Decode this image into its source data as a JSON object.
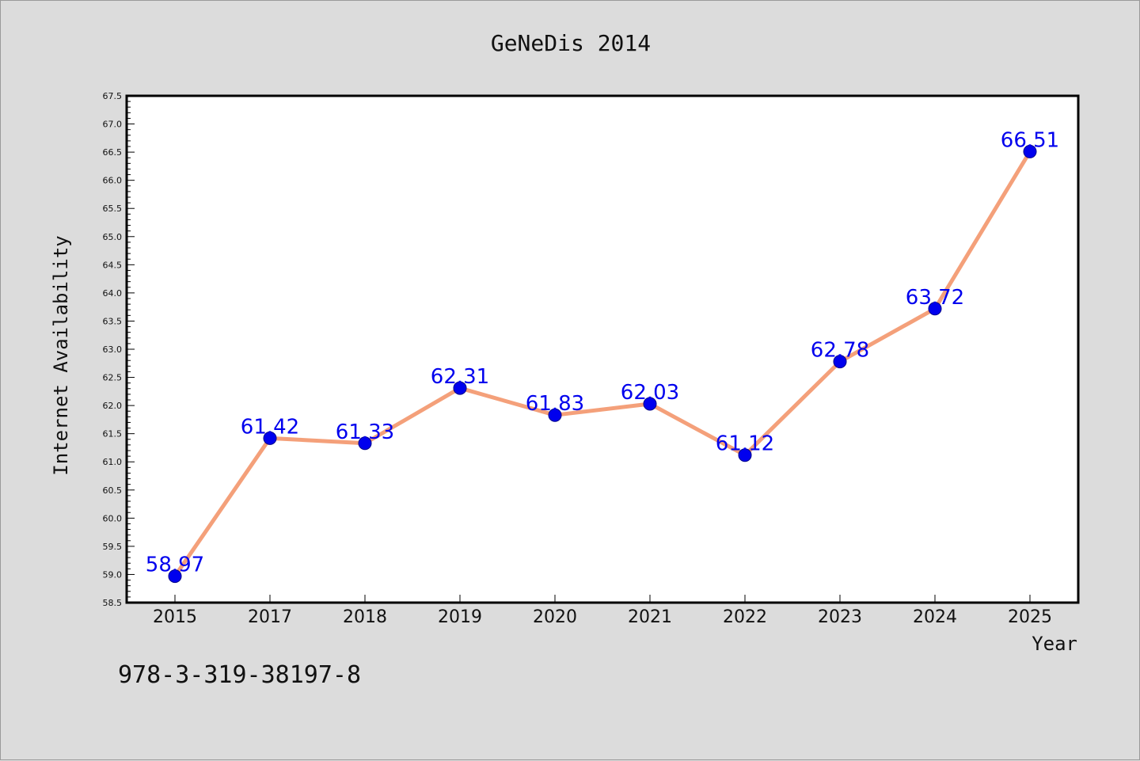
{
  "title": "GeNeDis 2014",
  "footnote": "978-3-319-38197-8",
  "colors": {
    "background": "#dcdcdc",
    "plot_background": "#ffffff",
    "line": "#f4a07a",
    "marker": "#0000ee",
    "label": "#0000ee"
  },
  "chart_data": {
    "type": "line",
    "title": "GeNeDis 2014",
    "xlabel": "Year",
    "ylabel": "Internet Availability",
    "categories": [
      "2015",
      "2017",
      "2018",
      "2019",
      "2020",
      "2021",
      "2022",
      "2023",
      "2024",
      "2025"
    ],
    "series": [
      {
        "values": [
          58.97,
          61.42,
          61.33,
          62.31,
          61.83,
          62.03,
          61.12,
          62.78,
          63.72,
          66.51
        ],
        "labels": [
          "58.97",
          "61.42",
          "61.33",
          "62.31",
          "61.83",
          "62.03",
          "61.12",
          "62.78",
          "63.72",
          "66.51"
        ]
      }
    ],
    "ylim": [
      58.5,
      67.5
    ],
    "yticks": [
      "58.5",
      "59.0",
      "59.5",
      "60.0",
      "60.5",
      "61.0",
      "61.5",
      "62.0",
      "62.5",
      "63.0",
      "63.5",
      "64.0",
      "64.5",
      "65.0",
      "65.5",
      "66.0",
      "66.5",
      "67.0",
      "67.5"
    ],
    "grid": false,
    "legend": "none"
  }
}
